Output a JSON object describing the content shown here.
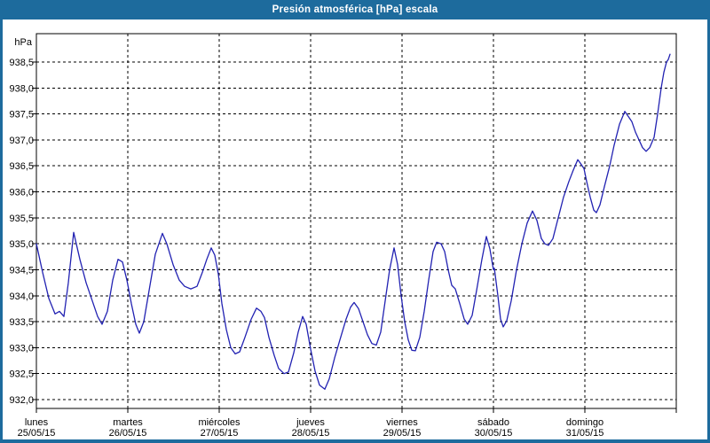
{
  "window": {
    "title": "Presión atmosférica [hPa] escala"
  },
  "colors": {
    "frame": "#1d6b9d",
    "title_text": "#ffffff",
    "plot_background": "#ffffff",
    "grid": "#000000",
    "line": "#2222b2"
  },
  "chart_data": {
    "type": "line",
    "title": "Presión atmosférica [hPa] escala",
    "grid": "dashed-black",
    "legend": "none",
    "y_axis": {
      "unit": "hPa",
      "min": 931.8,
      "max": 939.05,
      "tick_step": 0.5,
      "ticks": [
        {
          "value": 938.5,
          "label": "938,5"
        },
        {
          "value": 938.0,
          "label": "938,0"
        },
        {
          "value": 937.5,
          "label": "937,5"
        },
        {
          "value": 937.0,
          "label": "937,0"
        },
        {
          "value": 936.5,
          "label": "936,5"
        },
        {
          "value": 936.0,
          "label": "936,0"
        },
        {
          "value": 935.5,
          "label": "935,5"
        },
        {
          "value": 935.0,
          "label": "935,0"
        },
        {
          "value": 934.5,
          "label": "934,5"
        },
        {
          "value": 934.0,
          "label": "934,0"
        },
        {
          "value": 933.5,
          "label": "933,5"
        },
        {
          "value": 933.0,
          "label": "933,0"
        },
        {
          "value": 932.5,
          "label": "932,5"
        },
        {
          "value": 932.0,
          "label": "932,0"
        }
      ]
    },
    "x_axis": {
      "span_days": 7,
      "days": [
        {
          "name": "lunes",
          "date": "25/05/15"
        },
        {
          "name": "martes",
          "date": "26/05/15"
        },
        {
          "name": "miércoles",
          "date": "27/05/15"
        },
        {
          "name": "jueves",
          "date": "28/05/15"
        },
        {
          "name": "viernes",
          "date": "29/05/15"
        },
        {
          "name": "sábado",
          "date": "30/05/15"
        },
        {
          "name": "domingo",
          "date": "31/05/15"
        }
      ]
    },
    "series": [
      {
        "name": "presión atmosférica",
        "unit": "hPa",
        "color": "#2222b2",
        "points_format": "[days_since_lunes_00h, hPa]",
        "points": [
          [
            0.0,
            935.0
          ],
          [
            0.068,
            934.45
          ],
          [
            0.136,
            933.95
          ],
          [
            0.204,
            933.65
          ],
          [
            0.252,
            933.7
          ],
          [
            0.301,
            933.6
          ],
          [
            0.35,
            934.25
          ],
          [
            0.408,
            935.22
          ],
          [
            0.476,
            934.7
          ],
          [
            0.544,
            934.25
          ],
          [
            0.612,
            933.9
          ],
          [
            0.67,
            933.6
          ],
          [
            0.718,
            933.45
          ],
          [
            0.777,
            933.7
          ],
          [
            0.835,
            934.3
          ],
          [
            0.893,
            934.7
          ],
          [
            0.942,
            934.65
          ],
          [
            0.99,
            934.3
          ],
          [
            1.039,
            933.85
          ],
          [
            1.087,
            933.45
          ],
          [
            1.126,
            933.28
          ],
          [
            1.175,
            933.5
          ],
          [
            1.233,
            934.1
          ],
          [
            1.301,
            934.8
          ],
          [
            1.379,
            935.2
          ],
          [
            1.427,
            935.0
          ],
          [
            1.495,
            934.6
          ],
          [
            1.563,
            934.3
          ],
          [
            1.621,
            934.18
          ],
          [
            1.689,
            934.13
          ],
          [
            1.757,
            934.18
          ],
          [
            1.816,
            934.45
          ],
          [
            1.864,
            934.7
          ],
          [
            1.913,
            934.92
          ],
          [
            1.951,
            934.78
          ],
          [
            1.99,
            934.42
          ],
          [
            2.029,
            933.85
          ],
          [
            2.078,
            933.35
          ],
          [
            2.126,
            933.0
          ],
          [
            2.175,
            932.88
          ],
          [
            2.223,
            932.92
          ],
          [
            2.282,
            933.2
          ],
          [
            2.35,
            933.55
          ],
          [
            2.408,
            933.76
          ],
          [
            2.456,
            933.7
          ],
          [
            2.495,
            933.58
          ],
          [
            2.544,
            933.2
          ],
          [
            2.602,
            932.85
          ],
          [
            2.65,
            932.6
          ],
          [
            2.709,
            932.5
          ],
          [
            2.757,
            932.53
          ],
          [
            2.816,
            932.9
          ],
          [
            2.864,
            933.3
          ],
          [
            2.913,
            933.6
          ],
          [
            2.951,
            933.45
          ],
          [
            3.0,
            932.97
          ],
          [
            3.049,
            932.55
          ],
          [
            3.097,
            932.28
          ],
          [
            3.155,
            932.2
          ],
          [
            3.204,
            932.4
          ],
          [
            3.262,
            932.8
          ],
          [
            3.32,
            933.15
          ],
          [
            3.388,
            933.55
          ],
          [
            3.437,
            933.78
          ],
          [
            3.476,
            933.87
          ],
          [
            3.524,
            933.75
          ],
          [
            3.573,
            933.5
          ],
          [
            3.621,
            933.25
          ],
          [
            3.67,
            933.08
          ],
          [
            3.718,
            933.05
          ],
          [
            3.767,
            933.3
          ],
          [
            3.816,
            933.9
          ],
          [
            3.864,
            934.5
          ],
          [
            3.913,
            934.92
          ],
          [
            3.951,
            934.6
          ],
          [
            3.99,
            934.0
          ],
          [
            4.029,
            933.5
          ],
          [
            4.068,
            933.15
          ],
          [
            4.107,
            932.95
          ],
          [
            4.146,
            932.94
          ],
          [
            4.194,
            933.2
          ],
          [
            4.243,
            933.7
          ],
          [
            4.291,
            934.3
          ],
          [
            4.34,
            934.85
          ],
          [
            4.379,
            935.03
          ],
          [
            4.427,
            935.0
          ],
          [
            4.466,
            934.85
          ],
          [
            4.505,
            934.5
          ],
          [
            4.544,
            934.2
          ],
          [
            4.583,
            934.13
          ],
          [
            4.631,
            933.85
          ],
          [
            4.68,
            933.55
          ],
          [
            4.718,
            933.45
          ],
          [
            4.767,
            933.62
          ],
          [
            4.816,
            934.1
          ],
          [
            4.874,
            934.7
          ],
          [
            4.922,
            935.14
          ],
          [
            4.961,
            934.9
          ],
          [
            5.0,
            934.5
          ],
          [
            5.01,
            934.53
          ],
          [
            5.049,
            934.0
          ],
          [
            5.078,
            933.55
          ],
          [
            5.107,
            933.4
          ],
          [
            5.146,
            933.52
          ],
          [
            5.194,
            933.9
          ],
          [
            5.252,
            934.5
          ],
          [
            5.311,
            935.0
          ],
          [
            5.369,
            935.4
          ],
          [
            5.427,
            935.63
          ],
          [
            5.476,
            935.45
          ],
          [
            5.524,
            935.1
          ],
          [
            5.563,
            935.0
          ],
          [
            5.602,
            934.97
          ],
          [
            5.65,
            935.1
          ],
          [
            5.709,
            935.5
          ],
          [
            5.767,
            935.9
          ],
          [
            5.825,
            936.2
          ],
          [
            5.874,
            936.42
          ],
          [
            5.922,
            936.62
          ],
          [
            5.951,
            936.55
          ],
          [
            5.99,
            936.45
          ],
          [
            6.019,
            936.2
          ],
          [
            6.058,
            935.9
          ],
          [
            6.097,
            935.65
          ],
          [
            6.126,
            935.6
          ],
          [
            6.165,
            935.75
          ],
          [
            6.214,
            936.1
          ],
          [
            6.272,
            936.5
          ],
          [
            6.32,
            936.9
          ],
          [
            6.379,
            937.3
          ],
          [
            6.437,
            937.55
          ],
          [
            6.476,
            937.45
          ],
          [
            6.515,
            937.35
          ],
          [
            6.553,
            937.15
          ],
          [
            6.592,
            937.0
          ],
          [
            6.631,
            936.85
          ],
          [
            6.67,
            936.78
          ],
          [
            6.709,
            936.85
          ],
          [
            6.757,
            937.05
          ],
          [
            6.796,
            937.5
          ],
          [
            6.835,
            938.0
          ],
          [
            6.864,
            938.3
          ],
          [
            6.893,
            938.5
          ],
          [
            6.913,
            938.55
          ],
          [
            6.932,
            938.65
          ]
        ]
      }
    ]
  }
}
